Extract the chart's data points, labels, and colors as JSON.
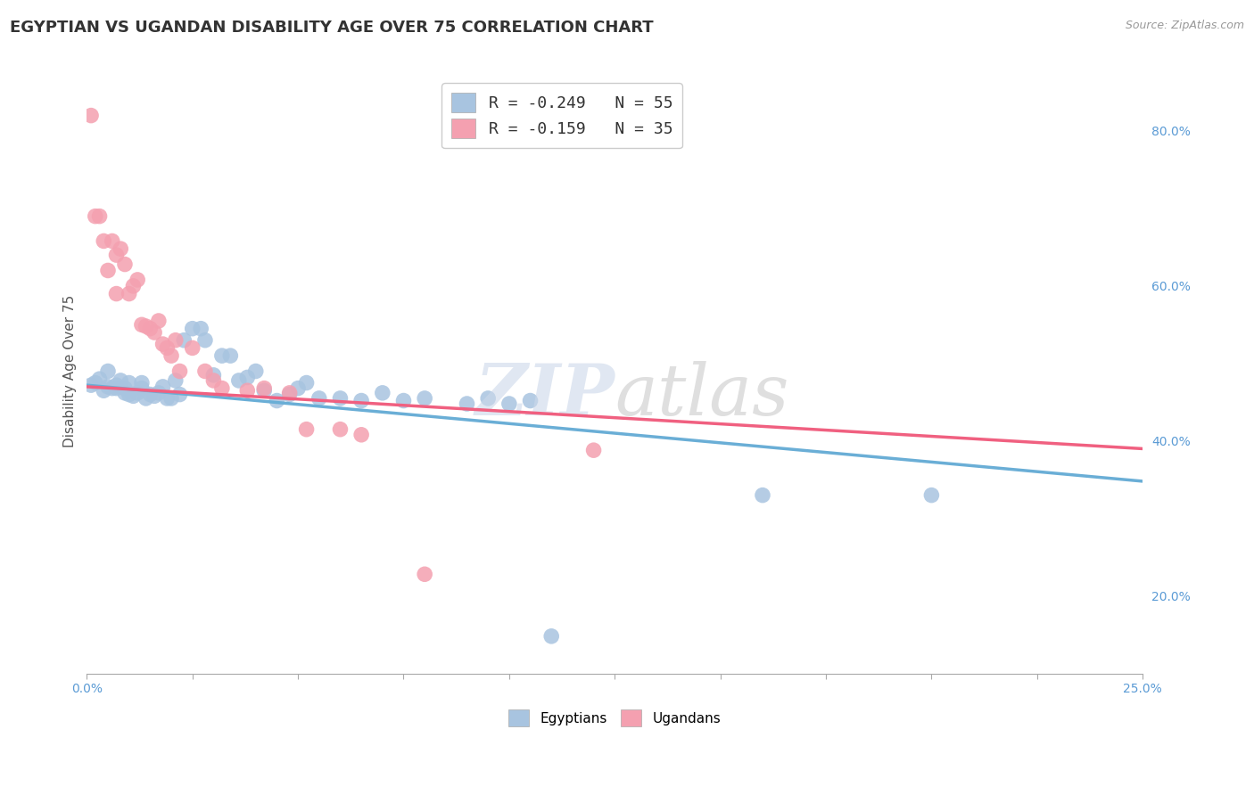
{
  "title": "EGYPTIAN VS UGANDAN DISABILITY AGE OVER 75 CORRELATION CHART",
  "source_text": "Source: ZipAtlas.com",
  "ylabel": "Disability Age Over 75",
  "xlim": [
    0.0,
    0.25
  ],
  "ylim": [
    0.1,
    0.88
  ],
  "xticks": [
    0.0,
    0.025,
    0.05,
    0.075,
    0.1,
    0.125,
    0.15,
    0.175,
    0.2,
    0.225,
    0.25
  ],
  "xtick_labels": [
    "0.0%",
    "",
    "",
    "",
    "",
    "",
    "",
    "",
    "",
    "",
    "25.0%"
  ],
  "ytick_labels_right": [
    "20.0%",
    "40.0%",
    "60.0%",
    "80.0%"
  ],
  "yticks_right": [
    0.2,
    0.4,
    0.6,
    0.8
  ],
  "egyptian_color": "#a8c4e0",
  "ugandan_color": "#f4a0b0",
  "egyptian_line_color": "#6aaed6",
  "ugandan_line_color": "#f06080",
  "legend_label_egyptian": "R = -0.249   N = 55",
  "legend_label_ugandan": "R = -0.159   N = 35",
  "background_color": "#ffffff",
  "grid_color": "#d0d0d0",
  "title_fontsize": 13,
  "axis_label_fontsize": 11,
  "tick_fontsize": 10,
  "egyptian_x": [
    0.001,
    0.002,
    0.003,
    0.004,
    0.005,
    0.005,
    0.006,
    0.007,
    0.007,
    0.008,
    0.009,
    0.009,
    0.01,
    0.01,
    0.011,
    0.012,
    0.013,
    0.013,
    0.014,
    0.015,
    0.016,
    0.017,
    0.018,
    0.019,
    0.02,
    0.021,
    0.022,
    0.023,
    0.025,
    0.027,
    0.028,
    0.03,
    0.032,
    0.034,
    0.036,
    0.038,
    0.04,
    0.042,
    0.045,
    0.048,
    0.05,
    0.052,
    0.055,
    0.06,
    0.065,
    0.07,
    0.075,
    0.08,
    0.09,
    0.095,
    0.1,
    0.105,
    0.11,
    0.16,
    0.2
  ],
  "egyptian_y": [
    0.472,
    0.475,
    0.48,
    0.465,
    0.47,
    0.49,
    0.468,
    0.468,
    0.472,
    0.478,
    0.462,
    0.468,
    0.46,
    0.475,
    0.458,
    0.462,
    0.475,
    0.468,
    0.455,
    0.46,
    0.458,
    0.462,
    0.47,
    0.455,
    0.455,
    0.478,
    0.46,
    0.53,
    0.545,
    0.545,
    0.53,
    0.485,
    0.51,
    0.51,
    0.478,
    0.482,
    0.49,
    0.465,
    0.452,
    0.46,
    0.468,
    0.475,
    0.455,
    0.455,
    0.452,
    0.462,
    0.452,
    0.455,
    0.448,
    0.455,
    0.448,
    0.452,
    0.148,
    0.33,
    0.33
  ],
  "ugandan_x": [
    0.001,
    0.002,
    0.003,
    0.004,
    0.005,
    0.006,
    0.007,
    0.007,
    0.008,
    0.009,
    0.01,
    0.011,
    0.012,
    0.013,
    0.014,
    0.015,
    0.016,
    0.017,
    0.018,
    0.019,
    0.02,
    0.021,
    0.022,
    0.025,
    0.028,
    0.03,
    0.032,
    0.038,
    0.042,
    0.048,
    0.052,
    0.06,
    0.065,
    0.08,
    0.12
  ],
  "ugandan_y": [
    0.82,
    0.69,
    0.69,
    0.658,
    0.62,
    0.658,
    0.64,
    0.59,
    0.648,
    0.628,
    0.59,
    0.6,
    0.608,
    0.55,
    0.548,
    0.545,
    0.54,
    0.555,
    0.525,
    0.52,
    0.51,
    0.53,
    0.49,
    0.52,
    0.49,
    0.478,
    0.468,
    0.465,
    0.468,
    0.462,
    0.415,
    0.415,
    0.408,
    0.228,
    0.388
  ]
}
